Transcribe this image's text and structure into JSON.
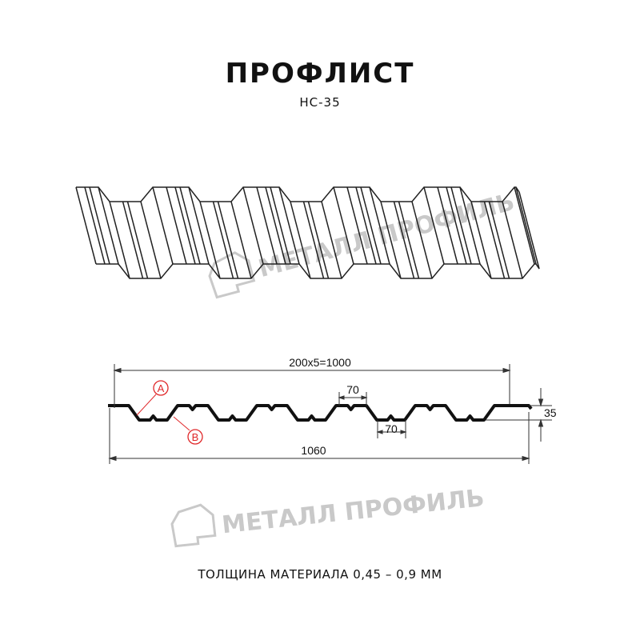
{
  "header": {
    "title": "ПРОФЛИСТ",
    "model": "НС-35"
  },
  "watermark": {
    "text": "МЕТАЛЛ ПРОФИЛЬ",
    "icon": "metall-profil-logo-icon"
  },
  "drawing": {
    "dimensions": {
      "pitch_total": "200x5=1000",
      "full_width": "1060",
      "height": "35",
      "top_flange": "70",
      "bottom_flange": "70"
    },
    "markers": {
      "a": "A",
      "b": "B"
    },
    "colors": {
      "profile": "#111111",
      "marker": "#e0282a",
      "watermark": "#c9c9c9"
    }
  },
  "footer": {
    "thickness": "ТОЛЩИНА МАТЕРИАЛА 0,45 – 0,9 ММ"
  }
}
